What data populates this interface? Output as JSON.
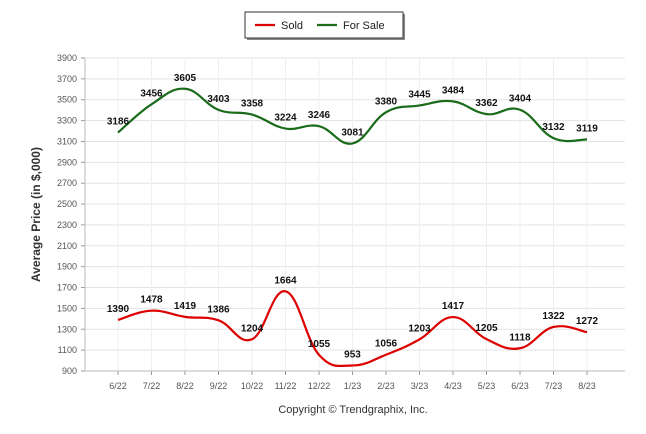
{
  "chart_data": {
    "type": "line",
    "title": "",
    "xlabel": "",
    "ylabel": "Average Price (in $,000)",
    "categories": [
      "6/22",
      "7/22",
      "8/22",
      "9/22",
      "10/22",
      "11/22",
      "12/22",
      "1/23",
      "2/23",
      "3/23",
      "4/23",
      "5/23",
      "6/23",
      "7/23",
      "8/23"
    ],
    "yticks": [
      900,
      1100,
      1300,
      1500,
      1700,
      1900,
      2100,
      2300,
      2500,
      2700,
      2900,
      3100,
      3300,
      3500,
      3700,
      3900
    ],
    "ylim": [
      900,
      3900
    ],
    "grid": true,
    "legend_position": "top-center",
    "series": [
      {
        "name": "Sold",
        "color": "#dd0000",
        "values": [
          1390,
          1478,
          1419,
          1386,
          1204,
          1664,
          1055,
          953,
          1056,
          1203,
          1417,
          1205,
          1118,
          1322,
          1272
        ]
      },
      {
        "name": "For Sale",
        "color": "#1a6b1a",
        "values": [
          3186,
          3456,
          3605,
          3403,
          3358,
          3224,
          3246,
          3081,
          3380,
          3445,
          3484,
          3362,
          3404,
          3132,
          3119
        ]
      }
    ],
    "footer": "Copyright © Trendgraphix, Inc."
  }
}
